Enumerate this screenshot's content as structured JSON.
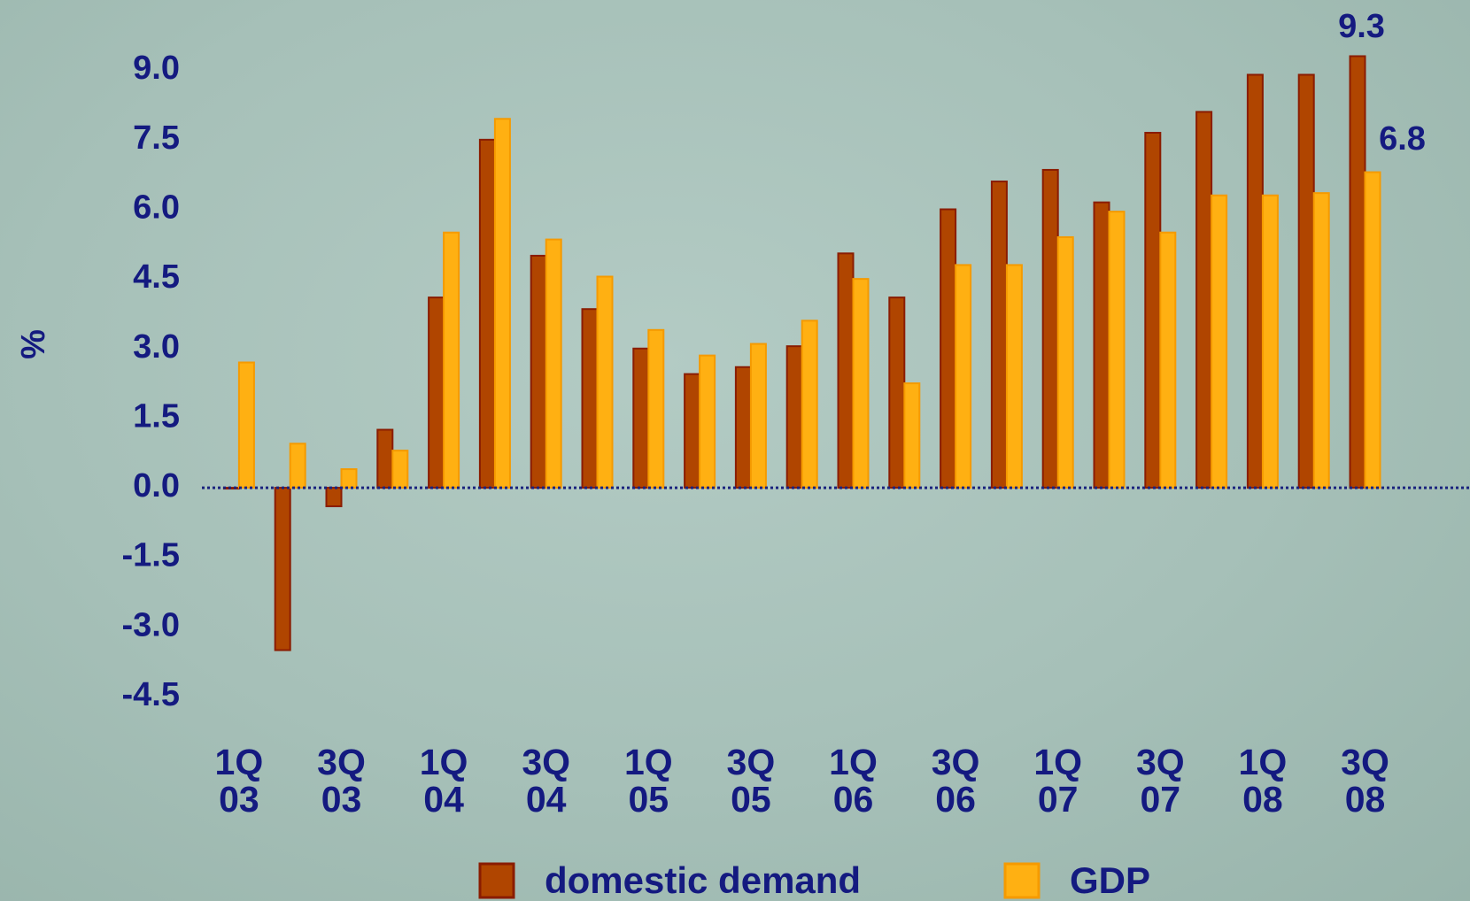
{
  "chart_data": {
    "type": "bar",
    "y_label": "%",
    "categories": [
      "1Q\n03",
      null,
      "3Q\n03",
      null,
      "1Q\n04",
      null,
      "3Q\n04",
      null,
      "1Q\n05",
      null,
      "3Q\n05",
      null,
      "1Q\n06",
      null,
      "3Q\n06",
      null,
      "1Q\n07",
      null,
      "3Q\n07",
      null,
      "1Q\n08",
      null,
      "3Q\n08"
    ],
    "series": [
      {
        "name": "domestic demand",
        "color": "#b04500",
        "values": [
          0.0,
          -3.5,
          -0.4,
          1.25,
          4.1,
          7.5,
          5.0,
          3.85,
          3.0,
          2.45,
          2.6,
          3.05,
          5.05,
          4.1,
          6.0,
          6.6,
          6.85,
          6.15,
          7.65,
          8.1,
          8.9,
          8.9,
          9.3
        ]
      },
      {
        "name": "GDP",
        "color": "#ffb012",
        "values": [
          2.7,
          0.95,
          0.4,
          0.8,
          5.5,
          7.95,
          5.35,
          4.55,
          3.4,
          2.85,
          3.1,
          3.6,
          4.5,
          2.25,
          4.8,
          4.8,
          5.4,
          5.95,
          5.5,
          6.3,
          6.3,
          6.35,
          6.8
        ]
      }
    ],
    "ylim": [
      -4.5,
      9.5
    ],
    "yticks": [
      {
        "value": -4.5,
        "label": "-4.5"
      },
      {
        "value": -3,
        "label": "-3.0"
      },
      -1.5,
      {
        "value": 0,
        "label": "0.0"
      },
      1.5,
      {
        "value": 3,
        "label": "3.0"
      },
      4.5,
      {
        "value": 6,
        "label": "6.0"
      },
      7.5,
      {
        "value": 9,
        "label": "9.0"
      }
    ],
    "grid": false,
    "legend": "bottom"
  }
}
